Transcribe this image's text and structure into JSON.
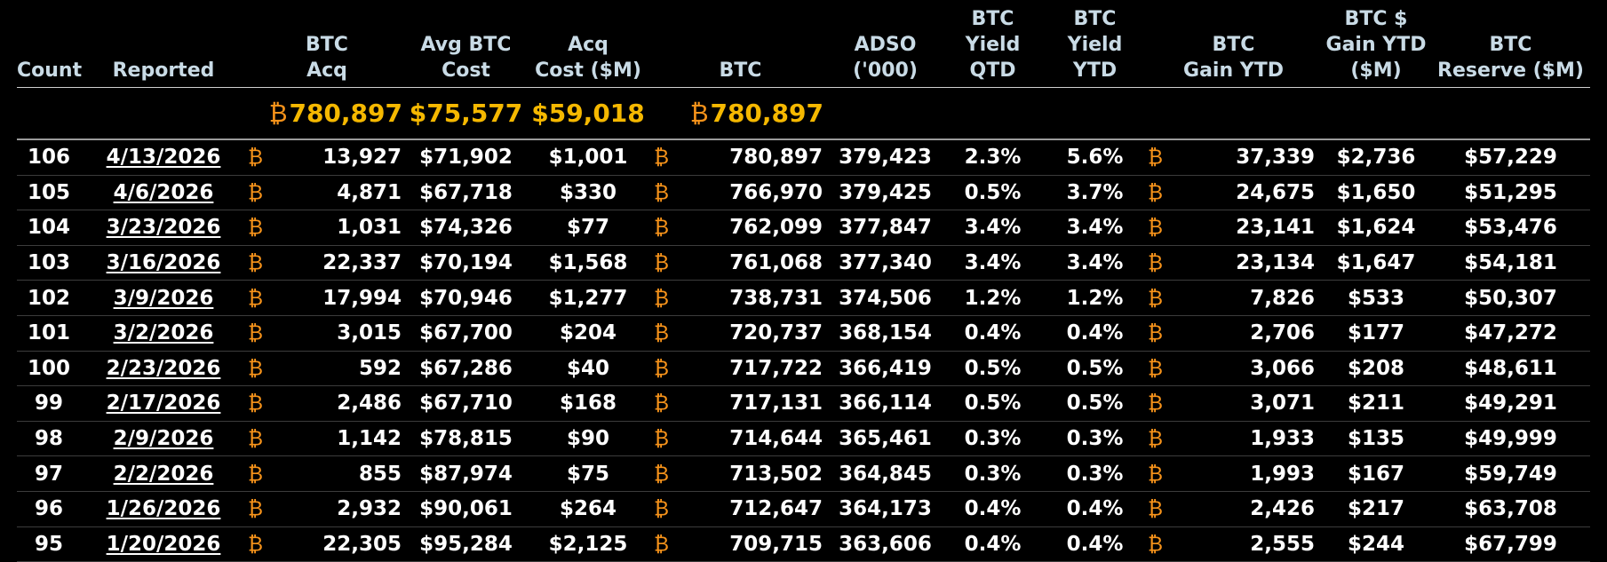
{
  "colors": {
    "header_text": "#c9dbe6",
    "summary_value": "#f5b800",
    "btc_symbol": "#f7931a",
    "background": "#000000"
  },
  "btc_symbol": "₿",
  "headers": [
    {
      "key": "count",
      "lines": [
        "Count"
      ]
    },
    {
      "key": "reported",
      "lines": [
        "Reported"
      ]
    },
    {
      "key": "btc_acq",
      "lines": [
        "BTC",
        "Acq"
      ]
    },
    {
      "key": "avg_btc_cost",
      "lines": [
        "Avg BTC",
        "Cost"
      ]
    },
    {
      "key": "acq_cost",
      "lines": [
        "Acq",
        "Cost ($M)"
      ]
    },
    {
      "key": "btc",
      "lines": [
        "BTC"
      ]
    },
    {
      "key": "adso",
      "lines": [
        "ADSO",
        "('000)"
      ]
    },
    {
      "key": "btc_yield_qtd",
      "lines": [
        "BTC",
        "Yield",
        "QTD"
      ]
    },
    {
      "key": "btc_yield_ytd",
      "lines": [
        "BTC",
        "Yield",
        "YTD"
      ]
    },
    {
      "key": "btc_gain_ytd",
      "lines": [
        "BTC",
        "Gain YTD"
      ]
    },
    {
      "key": "btc_usd_gain_ytd",
      "lines": [
        "BTC $",
        "Gain YTD",
        "($M)"
      ]
    },
    {
      "key": "btc_reserve",
      "lines": [
        "BTC",
        "Reserve ($M)"
      ]
    }
  ],
  "summary": {
    "btc_acq": "780,897",
    "avg_btc_cost": "$75,577",
    "acq_cost": "$59,018",
    "btc": "780,897"
  },
  "rows": [
    {
      "count": "106",
      "reported": "4/13/2026",
      "btc_acq": "13,927",
      "avg_btc_cost": "$71,902",
      "acq_cost": "$1,001",
      "btc": "780,897",
      "adso": "379,423",
      "yield_qtd": "2.3%",
      "yield_ytd": "5.6%",
      "gain_ytd": "37,339",
      "usd_gain_ytd": "$2,736",
      "reserve": "$57,229"
    },
    {
      "count": "105",
      "reported": "4/6/2026",
      "btc_acq": "4,871",
      "avg_btc_cost": "$67,718",
      "acq_cost": "$330",
      "btc": "766,970",
      "adso": "379,425",
      "yield_qtd": "0.5%",
      "yield_ytd": "3.7%",
      "gain_ytd": "24,675",
      "usd_gain_ytd": "$1,650",
      "reserve": "$51,295"
    },
    {
      "count": "104",
      "reported": "3/23/2026",
      "btc_acq": "1,031",
      "avg_btc_cost": "$74,326",
      "acq_cost": "$77",
      "btc": "762,099",
      "adso": "377,847",
      "yield_qtd": "3.4%",
      "yield_ytd": "3.4%",
      "gain_ytd": "23,141",
      "usd_gain_ytd": "$1,624",
      "reserve": "$53,476"
    },
    {
      "count": "103",
      "reported": "3/16/2026",
      "btc_acq": "22,337",
      "avg_btc_cost": "$70,194",
      "acq_cost": "$1,568",
      "btc": "761,068",
      "adso": "377,340",
      "yield_qtd": "3.4%",
      "yield_ytd": "3.4%",
      "gain_ytd": "23,134",
      "usd_gain_ytd": "$1,647",
      "reserve": "$54,181"
    },
    {
      "count": "102",
      "reported": "3/9/2026",
      "btc_acq": "17,994",
      "avg_btc_cost": "$70,946",
      "acq_cost": "$1,277",
      "btc": "738,731",
      "adso": "374,506",
      "yield_qtd": "1.2%",
      "yield_ytd": "1.2%",
      "gain_ytd": "7,826",
      "usd_gain_ytd": "$533",
      "reserve": "$50,307"
    },
    {
      "count": "101",
      "reported": "3/2/2026",
      "btc_acq": "3,015",
      "avg_btc_cost": "$67,700",
      "acq_cost": "$204",
      "btc": "720,737",
      "adso": "368,154",
      "yield_qtd": "0.4%",
      "yield_ytd": "0.4%",
      "gain_ytd": "2,706",
      "usd_gain_ytd": "$177",
      "reserve": "$47,272"
    },
    {
      "count": "100",
      "reported": "2/23/2026",
      "btc_acq": "592",
      "avg_btc_cost": "$67,286",
      "acq_cost": "$40",
      "btc": "717,722",
      "adso": "366,419",
      "yield_qtd": "0.5%",
      "yield_ytd": "0.5%",
      "gain_ytd": "3,066",
      "usd_gain_ytd": "$208",
      "reserve": "$48,611"
    },
    {
      "count": "99",
      "reported": "2/17/2026",
      "btc_acq": "2,486",
      "avg_btc_cost": "$67,710",
      "acq_cost": "$168",
      "btc": "717,131",
      "adso": "366,114",
      "yield_qtd": "0.5%",
      "yield_ytd": "0.5%",
      "gain_ytd": "3,071",
      "usd_gain_ytd": "$211",
      "reserve": "$49,291"
    },
    {
      "count": "98",
      "reported": "2/9/2026",
      "btc_acq": "1,142",
      "avg_btc_cost": "$78,815",
      "acq_cost": "$90",
      "btc": "714,644",
      "adso": "365,461",
      "yield_qtd": "0.3%",
      "yield_ytd": "0.3%",
      "gain_ytd": "1,933",
      "usd_gain_ytd": "$135",
      "reserve": "$49,999"
    },
    {
      "count": "97",
      "reported": "2/2/2026",
      "btc_acq": "855",
      "avg_btc_cost": "$87,974",
      "acq_cost": "$75",
      "btc": "713,502",
      "adso": "364,845",
      "yield_qtd": "0.3%",
      "yield_ytd": "0.3%",
      "gain_ytd": "1,993",
      "usd_gain_ytd": "$167",
      "reserve": "$59,749"
    },
    {
      "count": "96",
      "reported": "1/26/2026",
      "btc_acq": "2,932",
      "avg_btc_cost": "$90,061",
      "acq_cost": "$264",
      "btc": "712,647",
      "adso": "364,173",
      "yield_qtd": "0.4%",
      "yield_ytd": "0.4%",
      "gain_ytd": "2,426",
      "usd_gain_ytd": "$217",
      "reserve": "$63,708"
    },
    {
      "count": "95",
      "reported": "1/20/2026",
      "btc_acq": "22,305",
      "avg_btc_cost": "$95,284",
      "acq_cost": "$2,125",
      "btc": "709,715",
      "adso": "363,606",
      "yield_qtd": "0.4%",
      "yield_ytd": "0.4%",
      "gain_ytd": "2,555",
      "usd_gain_ytd": "$244",
      "reserve": "$67,799"
    }
  ]
}
